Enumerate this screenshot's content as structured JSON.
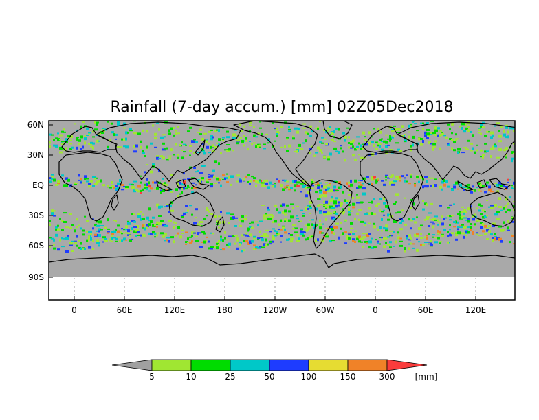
{
  "map": {
    "title": "Rainfall (7-day accum.) [mm] 02Z05Dec2018",
    "lat_labels": [
      "60N",
      "30N",
      "EQ",
      "30S",
      "60S",
      "90S"
    ],
    "lon_labels": [
      "0",
      "60E",
      "120E",
      "180",
      "120W",
      "60W",
      "0",
      "60E",
      "120E"
    ],
    "land_color": "#a9a9a9",
    "outline_color": "#000000"
  },
  "colorbar": {
    "unit": "[mm]",
    "thresholds": [
      "5",
      "10",
      "25",
      "50",
      "100",
      "150",
      "300"
    ],
    "colors": [
      "#a0a0a0",
      "#a0e632",
      "#00dc00",
      "#00c8c8",
      "#1e3cff",
      "#e6dc32",
      "#f08228",
      "#fa3c3c"
    ]
  }
}
